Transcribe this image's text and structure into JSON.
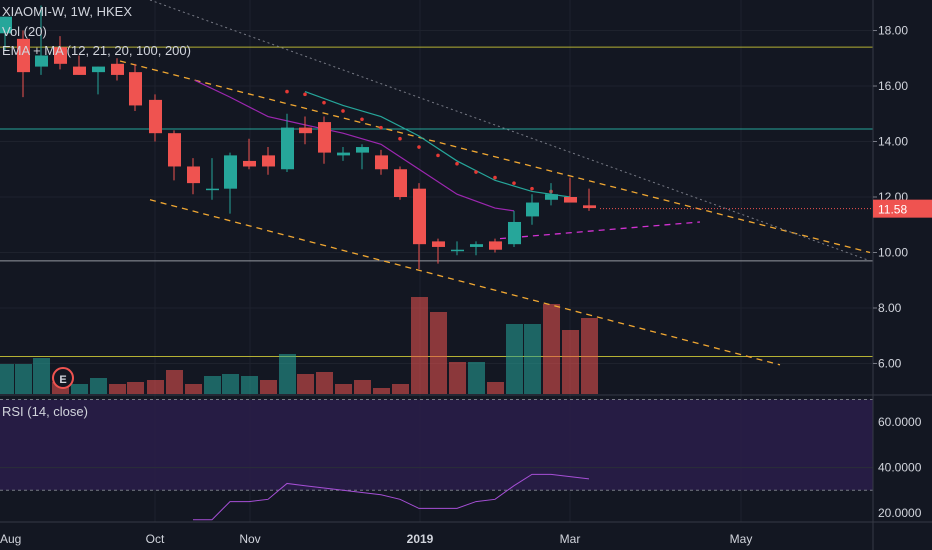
{
  "legend": {
    "symbol": "XIAOMI-W, 1W, HKEX",
    "volume": "Vol (20)",
    "ema_ma": "EMA + MA (12, 21, 20, 100, 200)",
    "rsi": "RSI (14, close)"
  },
  "last_price": "11.58",
  "earnings_marker": "E",
  "colors": {
    "background": "#131722",
    "up": "#26a69a",
    "down": "#ef5350",
    "trendline": "#f0a732",
    "ema_red": "#e53935",
    "ma_purple": "#9c27b0",
    "ma_teal": "#26a69a",
    "rsi_band": "#2a1d4a",
    "price_tag": "#ef5350"
  },
  "chart_data": {
    "type": "candlestick",
    "symbol": "XIAOMI-W",
    "interval": "1W",
    "exchange": "HKEX",
    "x_labels": [
      "Aug",
      "Oct",
      "Nov",
      "2019",
      "Mar",
      "May"
    ],
    "price_axis": {
      "ticks": [
        "18.00",
        "16.00",
        "14.00",
        "12.00",
        "10.00",
        "8.00",
        "6.00"
      ],
      "range": [
        4.9,
        19.1
      ]
    },
    "rsi_axis": {
      "ticks": [
        "60.0000",
        "40.0000",
        "20.0000"
      ],
      "range": [
        16,
        72
      ],
      "bands": [
        30,
        70
      ]
    },
    "candles": [
      {
        "x": 5,
        "o": 17.9,
        "h": 18.5,
        "l": 17.3,
        "c": 18.5
      },
      {
        "x": 23,
        "o": 17.7,
        "h": 18.0,
        "l": 15.6,
        "c": 16.5
      },
      {
        "x": 41,
        "o": 16.7,
        "h": 18.9,
        "l": 16.4,
        "c": 17.1
      },
      {
        "x": 60,
        "o": 17.4,
        "h": 17.8,
        "l": 16.6,
        "c": 16.8
      },
      {
        "x": 79,
        "o": 16.7,
        "h": 17.1,
        "l": 16.4,
        "c": 16.4
      },
      {
        "x": 98,
        "o": 16.5,
        "h": 16.7,
        "l": 15.7,
        "c": 16.7
      },
      {
        "x": 117,
        "o": 16.8,
        "h": 17.0,
        "l": 16.2,
        "c": 16.4
      },
      {
        "x": 135,
        "o": 16.5,
        "h": 16.8,
        "l": 15.1,
        "c": 15.3
      },
      {
        "x": 155,
        "o": 15.5,
        "h": 15.7,
        "l": 14.0,
        "c": 14.3
      },
      {
        "x": 174,
        "o": 14.3,
        "h": 14.4,
        "l": 12.6,
        "c": 13.1
      },
      {
        "x": 193,
        "o": 13.1,
        "h": 13.4,
        "l": 12.1,
        "c": 12.5
      },
      {
        "x": 212,
        "o": 12.3,
        "h": 13.4,
        "l": 11.9,
        "c": 12.3
      },
      {
        "x": 230,
        "o": 12.3,
        "h": 13.6,
        "l": 11.4,
        "c": 13.5
      },
      {
        "x": 249,
        "o": 13.3,
        "h": 14.1,
        "l": 13.0,
        "c": 13.1
      },
      {
        "x": 268,
        "o": 13.5,
        "h": 13.8,
        "l": 12.8,
        "c": 13.1
      },
      {
        "x": 287,
        "o": 13.0,
        "h": 15.0,
        "l": 12.9,
        "c": 14.5
      },
      {
        "x": 305,
        "o": 14.5,
        "h": 14.9,
        "l": 13.9,
        "c": 14.3
      },
      {
        "x": 324,
        "o": 14.7,
        "h": 14.9,
        "l": 13.2,
        "c": 13.6
      },
      {
        "x": 343,
        "o": 13.5,
        "h": 13.8,
        "l": 13.3,
        "c": 13.6
      },
      {
        "x": 362,
        "o": 13.6,
        "h": 13.9,
        "l": 13.0,
        "c": 13.8
      },
      {
        "x": 381,
        "o": 13.5,
        "h": 13.7,
        "l": 12.8,
        "c": 13.0
      },
      {
        "x": 400,
        "o": 13.0,
        "h": 13.1,
        "l": 11.9,
        "c": 12.0
      },
      {
        "x": 419,
        "o": 12.3,
        "h": 12.5,
        "l": 9.4,
        "c": 10.3
      },
      {
        "x": 438,
        "o": 10.4,
        "h": 10.5,
        "l": 9.6,
        "c": 10.2
      },
      {
        "x": 457,
        "o": 10.1,
        "h": 10.4,
        "l": 9.9,
        "c": 10.1
      },
      {
        "x": 476,
        "o": 10.2,
        "h": 10.4,
        "l": 9.9,
        "c": 10.3
      },
      {
        "x": 495,
        "o": 10.4,
        "h": 10.5,
        "l": 10.0,
        "c": 10.1
      },
      {
        "x": 514,
        "o": 10.3,
        "h": 11.5,
        "l": 10.2,
        "c": 11.1
      },
      {
        "x": 532,
        "o": 11.3,
        "h": 12.1,
        "l": 11.0,
        "c": 11.8
      },
      {
        "x": 551,
        "o": 11.9,
        "h": 12.5,
        "l": 11.7,
        "c": 12.1
      },
      {
        "x": 570,
        "o": 12.0,
        "h": 12.7,
        "l": 11.8,
        "c": 11.8
      },
      {
        "x": 589,
        "o": 11.7,
        "h": 12.3,
        "l": 11.5,
        "c": 11.6
      }
    ],
    "volume_bars": [
      {
        "x": 5,
        "h": 30,
        "up": true
      },
      {
        "x": 23,
        "h": 30,
        "up": true
      },
      {
        "x": 41,
        "h": 36,
        "up": true
      },
      {
        "x": 60,
        "h": 12,
        "up": false
      },
      {
        "x": 79,
        "h": 10,
        "up": true
      },
      {
        "x": 98,
        "h": 16,
        "up": true
      },
      {
        "x": 117,
        "h": 10,
        "up": false
      },
      {
        "x": 135,
        "h": 12,
        "up": false
      },
      {
        "x": 155,
        "h": 14,
        "up": false
      },
      {
        "x": 174,
        "h": 24,
        "up": false
      },
      {
        "x": 193,
        "h": 10,
        "up": false
      },
      {
        "x": 212,
        "h": 18,
        "up": true
      },
      {
        "x": 230,
        "h": 20,
        "up": true
      },
      {
        "x": 249,
        "h": 18,
        "up": true
      },
      {
        "x": 268,
        "h": 14,
        "up": false
      },
      {
        "x": 287,
        "h": 40,
        "up": true
      },
      {
        "x": 305,
        "h": 20,
        "up": false
      },
      {
        "x": 324,
        "h": 22,
        "up": false
      },
      {
        "x": 343,
        "h": 10,
        "up": false
      },
      {
        "x": 362,
        "h": 14,
        "up": false
      },
      {
        "x": 381,
        "h": 6,
        "up": false
      },
      {
        "x": 400,
        "h": 10,
        "up": false
      },
      {
        "x": 419,
        "h": 97,
        "up": false
      },
      {
        "x": 438,
        "h": 82,
        "up": false
      },
      {
        "x": 457,
        "h": 32,
        "up": false
      },
      {
        "x": 476,
        "h": 32,
        "up": true
      },
      {
        "x": 495,
        "h": 12,
        "up": false
      },
      {
        "x": 514,
        "h": 70,
        "up": true
      },
      {
        "x": 532,
        "h": 70,
        "up": true
      },
      {
        "x": 551,
        "h": 90,
        "up": false
      },
      {
        "x": 570,
        "h": 64,
        "up": false
      },
      {
        "x": 589,
        "h": 76,
        "up": false
      }
    ],
    "rsi": [
      {
        "x": 193,
        "v": 17
      },
      {
        "x": 212,
        "v": 17
      },
      {
        "x": 230,
        "v": 25
      },
      {
        "x": 249,
        "v": 25
      },
      {
        "x": 268,
        "v": 26
      },
      {
        "x": 287,
        "v": 33
      },
      {
        "x": 305,
        "v": 32
      },
      {
        "x": 324,
        "v": 31
      },
      {
        "x": 343,
        "v": 30
      },
      {
        "x": 362,
        "v": 29
      },
      {
        "x": 381,
        "v": 28
      },
      {
        "x": 400,
        "v": 26
      },
      {
        "x": 419,
        "v": 22
      },
      {
        "x": 438,
        "v": 22
      },
      {
        "x": 457,
        "v": 22
      },
      {
        "x": 476,
        "v": 25
      },
      {
        "x": 495,
        "v": 26
      },
      {
        "x": 514,
        "v": 32
      },
      {
        "x": 532,
        "v": 37
      },
      {
        "x": 551,
        "v": 37
      },
      {
        "x": 570,
        "v": 36
      },
      {
        "x": 589,
        "v": 35
      }
    ],
    "ema_dots": [
      {
        "x": 287,
        "v": 15.8
      },
      {
        "x": 305,
        "v": 15.7
      },
      {
        "x": 324,
        "v": 15.4
      },
      {
        "x": 343,
        "v": 15.1
      },
      {
        "x": 362,
        "v": 14.8
      },
      {
        "x": 381,
        "v": 14.5
      },
      {
        "x": 400,
        "v": 14.1
      },
      {
        "x": 419,
        "v": 13.8
      },
      {
        "x": 438,
        "v": 13.5
      },
      {
        "x": 457,
        "v": 13.2
      },
      {
        "x": 476,
        "v": 12.9
      },
      {
        "x": 495,
        "v": 12.7
      },
      {
        "x": 514,
        "v": 12.5
      },
      {
        "x": 532,
        "v": 12.3
      },
      {
        "x": 551,
        "v": 12.2
      }
    ],
    "ma_teal": [
      {
        "x": 305,
        "v": 15.8
      },
      {
        "x": 343,
        "v": 15.3
      },
      {
        "x": 381,
        "v": 14.9
      },
      {
        "x": 419,
        "v": 14.2
      },
      {
        "x": 457,
        "v": 13.3
      },
      {
        "x": 495,
        "v": 12.6
      },
      {
        "x": 532,
        "v": 12.2
      },
      {
        "x": 570,
        "v": 12.0
      }
    ],
    "ma_purple": [
      {
        "x": 195,
        "v": 16.2
      },
      {
        "x": 230,
        "v": 15.6
      },
      {
        "x": 268,
        "v": 14.9
      },
      {
        "x": 305,
        "v": 14.6
      },
      {
        "x": 343,
        "v": 14.3
      },
      {
        "x": 381,
        "v": 13.9
      },
      {
        "x": 419,
        "v": 13.0
      },
      {
        "x": 457,
        "v": 12.1
      },
      {
        "x": 495,
        "v": 11.6
      },
      {
        "x": 514,
        "v": 11.5
      }
    ],
    "horizontal_lines": [
      {
        "v": 17.4,
        "color": "#b5b134"
      },
      {
        "v": 14.45,
        "color": "#26a69a"
      },
      {
        "v": 9.7,
        "color": "#9598a1"
      },
      {
        "v": 6.25,
        "color": "#b5b134"
      }
    ],
    "trendlines": [
      {
        "x1": 120,
        "v1": 16.9,
        "x2": 870,
        "v2": 10.0,
        "style": "dash",
        "color": "#f0a732"
      },
      {
        "x1": 150,
        "v1": 11.9,
        "x2": 780,
        "v2": 5.95,
        "style": "dash",
        "color": "#f0a732"
      },
      {
        "x1": 150,
        "v1": 19.1,
        "x2": 870,
        "v2": 9.7,
        "style": "dot",
        "color": "#787b86"
      },
      {
        "x1": 500,
        "v1": 10.5,
        "x2": 700,
        "v2": 11.1,
        "style": "dash",
        "color": "#d131d1"
      }
    ]
  }
}
